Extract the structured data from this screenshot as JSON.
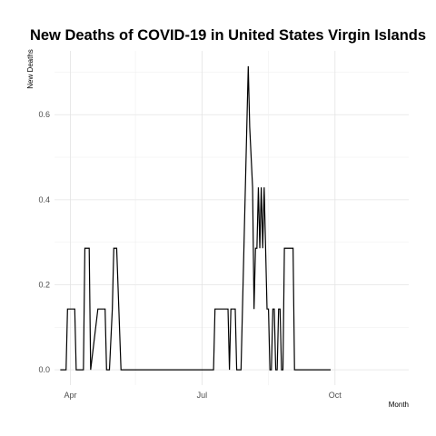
{
  "chart_data": {
    "type": "line",
    "title": "New Deaths of COVID-19 in United States Virgin Islands",
    "xlabel": "Month",
    "ylabel": "New Deaths",
    "x_ticks": [
      "Apr",
      "Jul",
      "Oct"
    ],
    "y_ticks": [
      "0.0",
      "0.2",
      "0.4",
      "0.6"
    ],
    "y_tick_values": [
      0,
      0.2,
      0.4,
      0.6
    ],
    "ylim": [
      -0.036,
      0.75
    ],
    "xlim": [
      "2020-03-21",
      "2020-11-21"
    ],
    "grid": true,
    "legend": "none",
    "color": "#000000",
    "x": [
      "2020-03-25",
      "2020-03-29",
      "2020-03-30",
      "2020-04-04",
      "2020-04-05",
      "2020-04-10",
      "2020-04-11",
      "2020-04-14",
      "2020-04-15",
      "2020-04-20",
      "2020-04-25",
      "2020-04-26",
      "2020-04-28",
      "2020-04-30",
      "2020-05-01",
      "2020-05-03",
      "2020-05-06",
      "2020-07-09",
      "2020-07-10",
      "2020-07-19",
      "2020-07-20",
      "2020-07-21",
      "2020-07-24",
      "2020-07-25",
      "2020-07-28",
      "2020-07-29",
      "2020-08-02",
      "2020-08-03",
      "2020-08-05",
      "2020-08-06",
      "2020-08-07",
      "2020-08-08",
      "2020-08-09",
      "2020-08-10",
      "2020-08-11",
      "2020-08-12",
      "2020-08-13",
      "2020-08-14",
      "2020-08-15",
      "2020-08-16",
      "2020-08-17",
      "2020-08-18",
      "2020-08-19",
      "2020-08-20",
      "2020-08-21",
      "2020-08-22",
      "2020-08-23",
      "2020-08-24",
      "2020-08-25",
      "2020-08-26",
      "2020-08-27",
      "2020-09-02",
      "2020-09-03",
      "2020-09-06",
      "2020-09-07",
      "2020-09-13",
      "2020-09-14",
      "2020-09-17",
      "2020-09-18",
      "2020-09-27",
      "2020-09-28"
    ],
    "values": [
      0,
      0,
      0.143,
      0.143,
      0,
      0,
      0.286,
      0.286,
      0,
      0.143,
      0.143,
      0,
      0,
      0.143,
      0.286,
      0.286,
      0,
      0,
      0.143,
      0.143,
      0,
      0.143,
      0.143,
      0,
      0,
      0.143,
      0.714,
      0.571,
      0.429,
      0.143,
      0.286,
      0.286,
      0.429,
      0.286,
      0.429,
      0.286,
      0.429,
      0.286,
      0.143,
      0.143,
      0,
      0,
      0.143,
      0.143,
      0,
      0,
      0.143,
      0.143,
      0,
      0,
      0.286,
      0.286,
      0,
      0,
      0,
      0,
      0,
      0,
      0,
      0,
      0
    ]
  }
}
